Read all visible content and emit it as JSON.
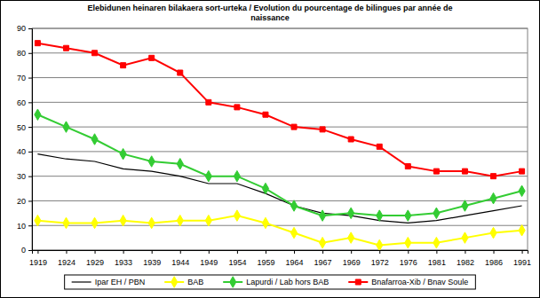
{
  "chart_data": {
    "type": "line",
    "title": "Elebidunen heinaren bilakaera sort-urteka / Evolution du pourcentage de bilingues par année de naissance",
    "categories": [
      "1919",
      "1924",
      "1929",
      "1933",
      "1939",
      "1944",
      "1949",
      "1954",
      "1959",
      "1964",
      "1967",
      "1969",
      "1972",
      "1976",
      "1981",
      "1982",
      "1986",
      "1991"
    ],
    "series": [
      {
        "name": "Ipar EH / PBN",
        "color": "#000000",
        "marker": "none",
        "values": [
          39,
          37,
          36,
          33,
          32,
          30,
          27,
          27,
          23,
          18,
          15,
          14,
          12,
          11,
          12,
          14,
          16,
          18
        ]
      },
      {
        "name": "BAB",
        "color": "#ffff00",
        "marker": "diamond",
        "values": [
          12,
          11,
          11,
          12,
          11,
          12,
          12,
          14,
          11,
          7,
          3,
          5,
          2,
          3,
          3,
          5,
          7,
          8
        ]
      },
      {
        "name": "Lapurdi / Lab hors BAB",
        "color": "#33cc33",
        "marker": "diamond",
        "values": [
          55,
          50,
          45,
          39,
          36,
          35,
          30,
          30,
          25,
          18,
          14,
          15,
          14,
          14,
          15,
          18,
          21,
          24
        ]
      },
      {
        "name": "Bnafarroa-Xib / Bnav Soule",
        "color": "#ff0000",
        "marker": "square",
        "values": [
          84,
          82,
          80,
          75,
          78,
          72,
          60,
          58,
          55,
          50,
          49,
          45,
          42,
          34,
          32,
          32,
          30,
          32
        ]
      }
    ],
    "ylim": [
      0,
      90
    ],
    "yticks": [
      0,
      10,
      20,
      30,
      40,
      50,
      60,
      70,
      80,
      90
    ],
    "grid": true,
    "legend": "bottom"
  }
}
